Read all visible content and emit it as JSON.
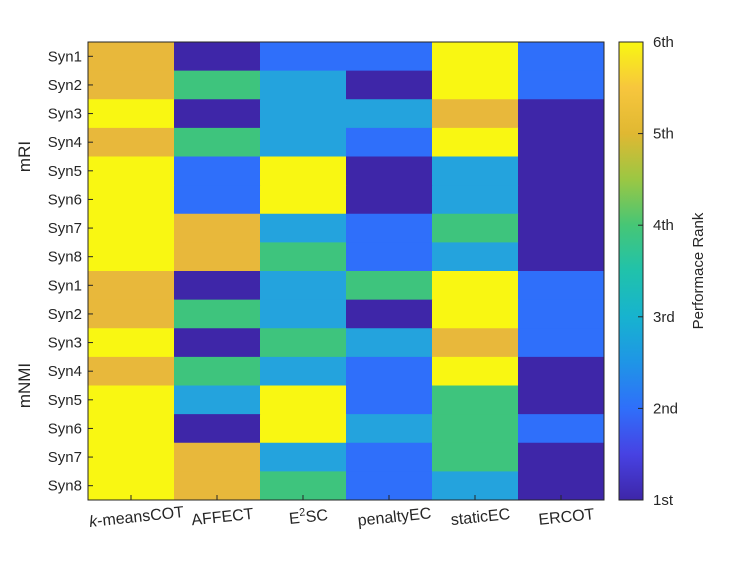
{
  "chart_data": {
    "type": "heatmap",
    "columns": [
      {
        "prefix": "k",
        "text": "-meansCOT",
        "sup": ""
      },
      {
        "prefix": "",
        "text": "AFFECT",
        "sup": ""
      },
      {
        "prefix": "",
        "text": "E",
        "sup": "2",
        "suffix": "SC"
      },
      {
        "prefix": "",
        "text": "penaltyEC",
        "sup": ""
      },
      {
        "prefix": "",
        "text": "staticEC",
        "sup": ""
      },
      {
        "prefix": "",
        "text": "ERCOT",
        "sup": ""
      }
    ],
    "row_labels": [
      "Syn1",
      "Syn2",
      "Syn3",
      "Syn4",
      "Syn5",
      "Syn6",
      "Syn7",
      "Syn8",
      "Syn1",
      "Syn2",
      "Syn3",
      "Syn4",
      "Syn5",
      "Syn6",
      "Syn7",
      "Syn8"
    ],
    "groups": [
      {
        "label": "mRI",
        "start": 0,
        "end": 7
      },
      {
        "label": "mNMI",
        "start": 8,
        "end": 15
      }
    ],
    "ranks": [
      [
        5,
        1,
        2,
        2,
        6,
        2
      ],
      [
        5,
        4,
        3,
        1,
        6,
        2
      ],
      [
        6,
        1,
        3,
        3,
        5,
        1
      ],
      [
        5,
        4,
        3,
        2,
        6,
        1
      ],
      [
        6,
        2,
        6,
        1,
        3,
        1
      ],
      [
        6,
        2,
        6,
        1,
        3,
        1
      ],
      [
        6,
        5,
        3,
        2,
        4,
        1
      ],
      [
        6,
        5,
        4,
        2,
        3,
        1
      ],
      [
        5,
        1,
        3,
        4,
        6,
        2
      ],
      [
        5,
        4,
        3,
        1,
        6,
        2
      ],
      [
        6,
        1,
        4,
        3,
        5,
        2
      ],
      [
        5,
        4,
        3,
        2,
        6,
        1
      ],
      [
        6,
        3,
        6,
        2,
        4,
        1
      ],
      [
        6,
        1,
        6,
        3,
        4,
        2
      ],
      [
        6,
        5,
        3,
        2,
        4,
        1
      ],
      [
        6,
        5,
        4,
        2,
        3,
        1
      ]
    ],
    "colorbar": {
      "label": "Performace Rank",
      "ticks": [
        "1st",
        "2nd",
        "3rd",
        "4th",
        "5th",
        "6th"
      ],
      "range": [
        1,
        6
      ]
    },
    "rank_colors": {
      "1": "#3e26a8",
      "2": "#2f6ffa",
      "3": "#24a3dd",
      "4": "#3ec47d",
      "5": "#e8b83b",
      "6": "#f9f712"
    },
    "colormap_stops": [
      "#3e26a8",
      "#4742e3",
      "#2f6ffa",
      "#1f95e6",
      "#17b3cf",
      "#20c2ab",
      "#46c676",
      "#9bc743",
      "#e0b832",
      "#f7c63d",
      "#f9f712"
    ]
  }
}
